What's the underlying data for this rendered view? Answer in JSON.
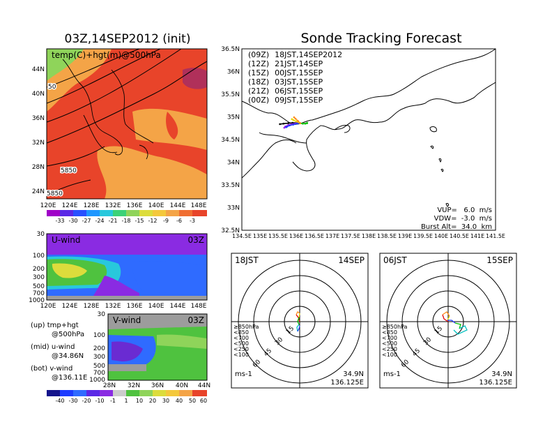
{
  "header": {
    "init_title": "03Z,14SEP2012 (init)",
    "main_title": "Sonde Tracking Forecast"
  },
  "colors": {
    "coast": "#000000",
    "field_hot": "#e8442a",
    "field_warm": "#f4a447",
    "field_green": "#8fd45a",
    "wind_purple": "#8a2be2",
    "wind_green": "#4fc23f"
  },
  "tracks": [
    {
      "label": "(09Z)",
      "time": "18JST,14SEP2012",
      "color": "#000000"
    },
    {
      "label": "(12Z)",
      "time": "21JST,14SEP",
      "color": "#a020f0"
    },
    {
      "label": "(15Z)",
      "time": "00JST,15SEP",
      "color": "#1e3cff"
    },
    {
      "label": "(18Z)",
      "time": "03JST,15SEP",
      "color": "#00c000"
    },
    {
      "label": "(21Z)",
      "time": "06JST,15SEP",
      "color": "#e6d800"
    },
    {
      "label": "(00Z)",
      "time": "09JST,15SEP",
      "color": "#ff8c1a"
    }
  ],
  "params": {
    "vup": "VUP=   6.0  m/s",
    "vdw": "VDW=  -3.0  m/s",
    "burst": "Burst Alt=  34.0  km"
  },
  "panels": {
    "temp": {
      "label": "temp(C)+hgt(m)@500hPa",
      "contours": [
        "50",
        "5850",
        "5850"
      ],
      "yticks": [
        "44N",
        "40N",
        "36N",
        "32N",
        "28N",
        "24N"
      ],
      "xticks": [
        "120E",
        "124E",
        "128E",
        "132E",
        "136E",
        "140E",
        "144E",
        "148E"
      ],
      "colorbar": [
        "-33",
        "-30",
        "-27",
        "-24",
        "-21",
        "-18",
        "-15",
        "-12",
        "-9",
        "-6",
        "-3"
      ]
    },
    "uwind": {
      "label": "U-wind",
      "time": "03Z",
      "yticks": [
        "30",
        "100",
        "200",
        "300",
        "500",
        "700",
        "1000"
      ],
      "xticks": [
        "120E",
        "124E",
        "128E",
        "132E",
        "136E",
        "140E",
        "144E",
        "148E"
      ]
    },
    "vwind": {
      "label": "V-wind",
      "time": "03Z",
      "yticks": [
        "30",
        "100",
        "200",
        "300",
        "500",
        "700",
        "1000"
      ],
      "xticks": [
        "28N",
        "32N",
        "36N",
        "40N",
        "44N"
      ],
      "colorbar": [
        "-40",
        "-30",
        "-20",
        "-10",
        "-1",
        "1",
        "10",
        "20",
        "30",
        "40",
        "50",
        "60"
      ]
    }
  },
  "legend_notes": [
    {
      "tag": "(up)",
      "text": "tmp+hgt",
      "sub": "@500hPa"
    },
    {
      "tag": "(mid)",
      "text": "u-wind",
      "sub": "@34.86N"
    },
    {
      "tag": "(bot)",
      "text": "v-wind",
      "sub": "@136.11E"
    }
  ],
  "polar": [
    {
      "left": "18JST",
      "right": "14SEP",
      "unit": "ms-1",
      "lat": "34.9N",
      "lon": "136.125E"
    },
    {
      "left": "06JST",
      "right": "15SEP",
      "unit": "ms-1",
      "lat": "34.9N",
      "lon": "136.125E"
    }
  ],
  "polar_common": {
    "rings": [
      "15",
      "30",
      "45",
      "60"
    ],
    "levels": [
      {
        "text": "≥850hPa",
        "color": "#e00000"
      },
      {
        "text": "<850",
        "color": "#ff8c1a"
      },
      {
        "text": "<700",
        "color": "#e6d800"
      },
      {
        "text": "<500",
        "color": "#00c000"
      },
      {
        "text": "<250",
        "color": "#00c0c0"
      },
      {
        "text": "<100",
        "color": "#1e3cff"
      }
    ]
  },
  "chart_data": {
    "type": "line",
    "title": "Sonde Tracking Forecast",
    "xlabel": "",
    "ylabel": "",
    "x_ticks": [
      "134.5E",
      "135E",
      "135.5E",
      "136E",
      "136.5E",
      "137E",
      "137.5E",
      "138E",
      "138.5E",
      "139E",
      "139.5E",
      "140E",
      "140.5E",
      "141E",
      "141.5E"
    ],
    "y_ticks": [
      "32.5N",
      "33N",
      "33.5N",
      "34N",
      "34.5N",
      "35N",
      "35.5N",
      "36N",
      "36.5N"
    ],
    "xlim": [
      134.5,
      141.5
    ],
    "ylim": [
      32.5,
      36.5
    ],
    "series": [
      {
        "name": "(09Z) 18JST,14SEP2012",
        "color": "#000000",
        "lon": [
          136.11,
          136.0,
          135.9,
          135.78,
          135.65,
          135.55
        ],
        "lat": [
          34.86,
          34.87,
          34.87,
          34.86,
          34.85,
          34.84
        ]
      },
      {
        "name": "(12Z) 21JST,14SEP",
        "color": "#a020f0",
        "lon": [
          136.11,
          136.0,
          135.88,
          135.78,
          135.7,
          135.67
        ],
        "lat": [
          34.86,
          34.86,
          34.84,
          34.82,
          34.79,
          34.76
        ]
      },
      {
        "name": "(15Z) 00JST,15SEP",
        "color": "#1e3cff",
        "lon": [
          136.11,
          136.02,
          135.92,
          135.82,
          135.74,
          135.72
        ],
        "lat": [
          34.86,
          34.85,
          34.83,
          34.81,
          34.78,
          34.77
        ]
      },
      {
        "name": "(18Z) 03JST,15SEP",
        "color": "#00c000",
        "lon": [
          136.11,
          136.18,
          136.25,
          136.3,
          136.3
        ],
        "lat": [
          34.86,
          34.85,
          34.85,
          34.86,
          34.87
        ]
      },
      {
        "name": "(21Z) 06JST,15SEP",
        "color": "#e6d800",
        "lon": [
          136.11,
          136.0,
          135.92,
          135.88
        ],
        "lat": [
          34.86,
          34.9,
          34.93,
          34.95
        ]
      },
      {
        "name": "(00Z) 09JST,15SEP",
        "color": "#ff8c1a",
        "lon": [
          136.11,
          136.05,
          135.98,
          135.94
        ],
        "lat": [
          34.86,
          34.91,
          34.96,
          34.99
        ]
      }
    ]
  }
}
